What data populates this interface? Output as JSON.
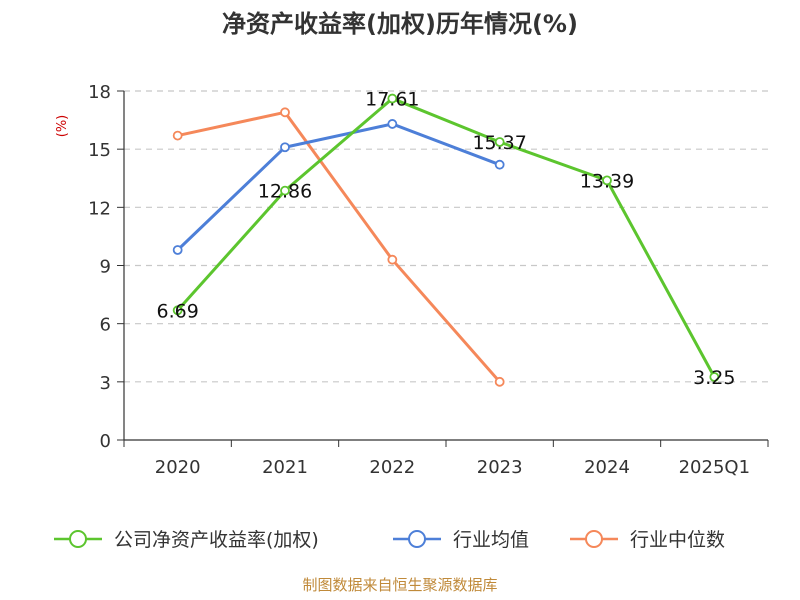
{
  "chart_data": {
    "type": "line",
    "title": "净资产收益率(加权)历年情况(%)",
    "ylabel": "(%)",
    "xlabel": "",
    "categories": [
      "2020",
      "2021",
      "2022",
      "2023",
      "2024",
      "2025Q1"
    ],
    "ylim": [
      0,
      18
    ],
    "yticks": [
      0,
      3,
      6,
      9,
      12,
      15,
      18
    ],
    "grid": true,
    "legend_position": "bottom",
    "series": [
      {
        "name": "公司净资产收益率(加权)",
        "color": "#5cc52e",
        "values": [
          6.69,
          12.86,
          17.61,
          15.37,
          13.39,
          3.25
        ],
        "labels": [
          "6.69",
          "12.86",
          "17.61",
          "15.37",
          "13.39",
          "3.25"
        ],
        "show_labels": true
      },
      {
        "name": "行业均值",
        "color": "#4d7fd8",
        "values": [
          9.8,
          15.1,
          16.3,
          14.2,
          null,
          null
        ],
        "show_labels": false
      },
      {
        "name": "行业中位数",
        "color": "#f5885a",
        "values": [
          15.7,
          16.9,
          9.3,
          3.0,
          null,
          null
        ],
        "show_labels": false
      }
    ]
  },
  "source": "制图数据来自恒生聚源数据库"
}
